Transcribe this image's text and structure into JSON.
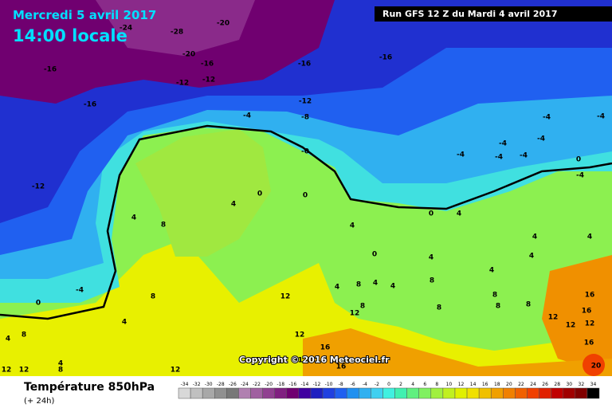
{
  "header": {
    "title": "Mercredi 5 avril 2017",
    "subtitle": "14:00 locale",
    "run": "Run GFS 12 Z du Mardi 4 avril 2017"
  },
  "copyright": "Copyright © 2016 Meteociel.fr",
  "footer": {
    "title": "Température 850hPa",
    "subtitle": "(+ 24h)"
  },
  "scale": {
    "values": [
      -34,
      -32,
      -30,
      -28,
      -26,
      -24,
      -22,
      -20,
      -18,
      -16,
      -14,
      -12,
      -10,
      -8,
      -6,
      -4,
      -2,
      0,
      2,
      4,
      6,
      8,
      10,
      12,
      14,
      16,
      18,
      20,
      22,
      24,
      26,
      28,
      30,
      32,
      34
    ],
    "colors": [
      "#d8d8d8",
      "#c0c0c0",
      "#a8a8a8",
      "#909090",
      "#787878",
      "#b080b0",
      "#a060a0",
      "#904090",
      "#802080",
      "#700070",
      "#4000a0",
      "#2020c0",
      "#2040e0",
      "#2060f0",
      "#2090f0",
      "#30b0f0",
      "#40d0f0",
      "#40f0e0",
      "#40f0b0",
      "#60f080",
      "#80f060",
      "#a0f040",
      "#c0f020",
      "#e0f000",
      "#f0e000",
      "#f0c000",
      "#f0a000",
      "#f08000",
      "#f06000",
      "#f04000",
      "#e02000",
      "#c00000",
      "#a00000",
      "#800000",
      "#000000"
    ]
  },
  "map_labels": [
    "-24",
    "-28",
    "-20",
    "-20",
    "-16",
    "-16",
    "-12",
    "-12",
    "-16",
    "-16",
    "-16",
    "-12",
    "-8",
    "-4",
    "-12",
    "-0",
    "0",
    "0",
    "4",
    "4",
    "8",
    "4",
    "-4",
    "-4",
    "-4",
    "-4",
    "-4",
    "-4",
    "-4",
    "0",
    "-4",
    "0",
    "4",
    "4",
    "4",
    "0",
    "4",
    "4",
    "4",
    "8",
    "4",
    "4",
    "8",
    "4",
    "-4",
    "0",
    "8",
    "12",
    "8",
    "12",
    "8",
    "8",
    "8",
    "8",
    "16",
    "16",
    "12",
    "12",
    "12",
    "4",
    "8",
    "4",
    "12",
    "16",
    "12",
    "16",
    "16",
    "20",
    "12",
    "12",
    "4",
    "8",
    "12"
  ]
}
